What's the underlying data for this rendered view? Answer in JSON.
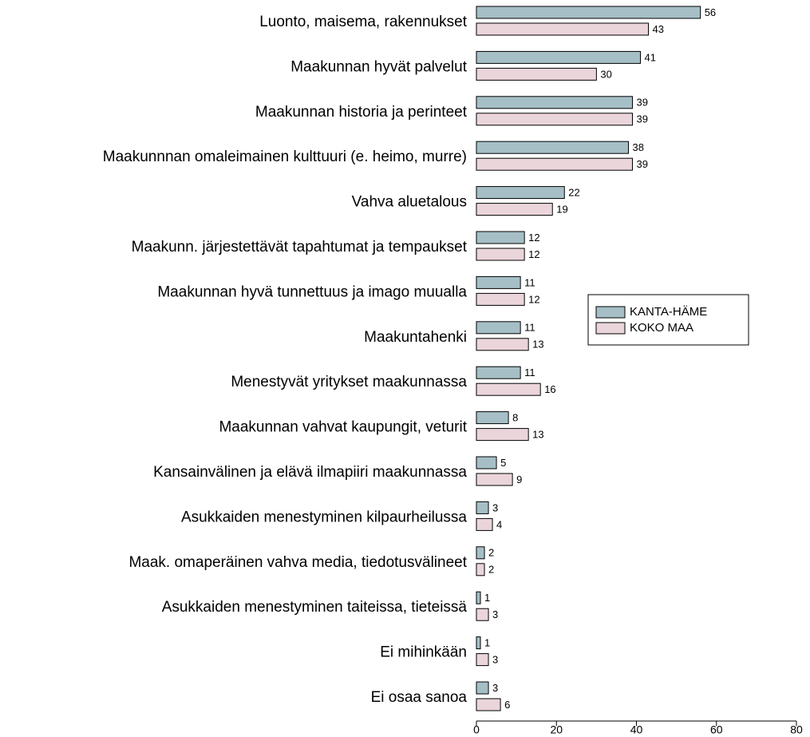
{
  "chart_data": {
    "type": "bar",
    "orientation": "horizontal",
    "categories": [
      "Luonto, maisema, rakennukset",
      "Maakunnan hyvät palvelut",
      "Maakunnan historia ja perinteet",
      "Maakunnnan omaleimainen kulttuuri (e. heimo, murre)",
      "Vahva aluetalous",
      "Maakunn. järjestettävät tapahtumat ja tempaukset",
      "Maakunnan hyvä tunnettuus ja imago muualla",
      "Maakuntahenki",
      "Menestyvät yritykset maakunnassa",
      "Maakunnan vahvat kaupungit, veturit",
      "Kansainvälinen ja elävä ilmapiiri maakunnassa",
      "Asukkaiden menestyminen kilpaurheilussa",
      "Maak. omaperäinen vahva media, tiedotusvälineet",
      "Asukkaiden menestyminen taiteissa, tieteissä",
      "Ei mihinkään",
      "Ei osaa sanoa"
    ],
    "series": [
      {
        "name": "KANTA-HÄME",
        "color": "#a6bfc7",
        "values": [
          56,
          41,
          39,
          38,
          22,
          12,
          11,
          11,
          11,
          8,
          5,
          3,
          2,
          1,
          1,
          3
        ]
      },
      {
        "name": "KOKO MAA",
        "color": "#ead5da",
        "values": [
          43,
          30,
          39,
          39,
          19,
          12,
          12,
          13,
          16,
          13,
          9,
          4,
          2,
          3,
          3,
          6
        ]
      }
    ],
    "xlim": [
      0,
      80
    ],
    "xticks": [
      0,
      20,
      40,
      60,
      80
    ],
    "legend": "right"
  }
}
